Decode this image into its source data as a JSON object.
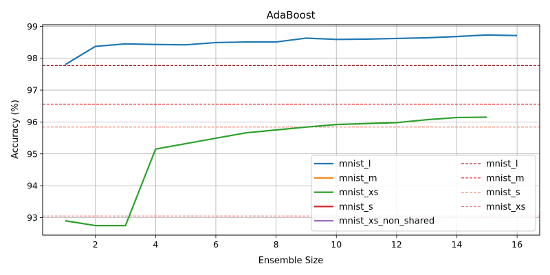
{
  "chart_data": {
    "type": "line",
    "title": "AdaBoost",
    "xlabel": "Ensemble Size",
    "ylabel": "Accuracy (%)",
    "xlim": [
      0.25,
      16.75
    ],
    "ylim": [
      92.45,
      99.05
    ],
    "xticks": [
      2,
      4,
      6,
      8,
      10,
      12,
      14,
      16
    ],
    "yticks": [
      93,
      94,
      95,
      96,
      97,
      98,
      99
    ],
    "grid": true,
    "legend_placement": "lower-right",
    "legend_columns": 2,
    "series": [
      {
        "name": "mnist_l",
        "color": "#1f77b4",
        "style": "solid",
        "x": [
          1,
          2,
          3,
          4,
          5,
          6,
          7,
          8,
          9,
          10,
          11,
          12,
          13,
          14,
          15,
          16
        ],
        "values": [
          97.8,
          98.37,
          98.45,
          98.43,
          98.42,
          98.49,
          98.51,
          98.51,
          98.63,
          98.59,
          98.6,
          98.62,
          98.64,
          98.68,
          98.73,
          98.71
        ]
      },
      {
        "name": "mnist_m",
        "color": "#ff7f0e",
        "style": "solid",
        "x": [],
        "values": []
      },
      {
        "name": "mnist_xs",
        "color": "#2ca02c",
        "style": "solid",
        "x": [
          1,
          2,
          3,
          4,
          5,
          6,
          7,
          8,
          9,
          10,
          11,
          12,
          13,
          14,
          15
        ],
        "values": [
          92.9,
          92.75,
          92.75,
          95.15,
          95.32,
          95.49,
          95.66,
          95.75,
          95.84,
          95.92,
          95.95,
          95.98,
          96.07,
          96.14,
          96.15
        ]
      },
      {
        "name": "mnist_s",
        "color": "#d62728",
        "style": "solid",
        "x": [],
        "values": []
      },
      {
        "name": "mnist_xs_non_shared",
        "color": "#9467bd",
        "style": "solid",
        "x": [],
        "values": []
      }
    ],
    "reference_lines": [
      {
        "name": "mnist_l",
        "color": "#8b0000",
        "style": "dashed",
        "y": 97.77
      },
      {
        "name": "mnist_m",
        "color": "#e8191c",
        "style": "dashed",
        "y": 96.56
      },
      {
        "name": "mnist_s",
        "color": "#f4806c",
        "style": "dashed",
        "y": 95.84
      },
      {
        "name": "mnist_xs",
        "color": "#f08080",
        "style": "dashed",
        "y": 93.05
      }
    ]
  }
}
